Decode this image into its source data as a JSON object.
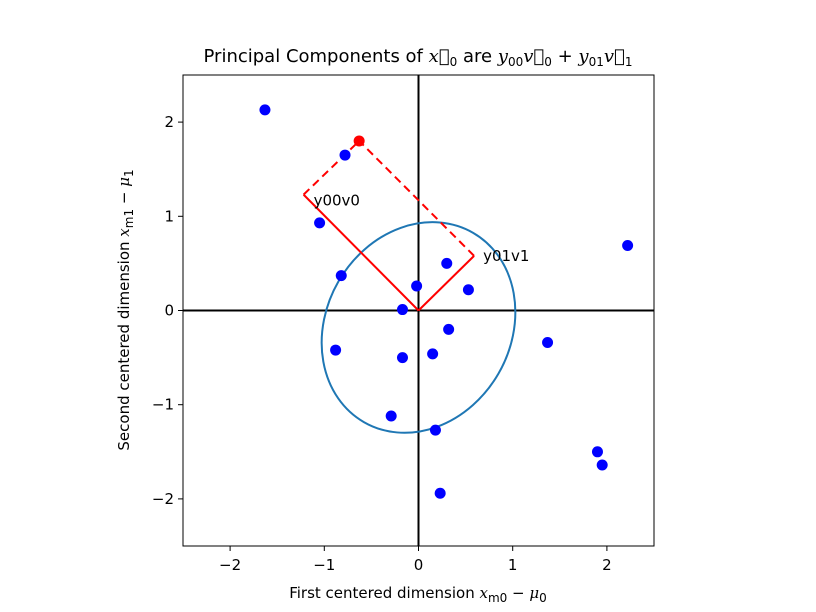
{
  "chart_data": {
    "type": "scatter",
    "title": {
      "prefix": "Principal Components of ",
      "middle": " are ",
      "plus": " + "
    },
    "xlabel": {
      "prefix": "First centered dimension ",
      "var": "x",
      "var_sub": "m0",
      "minus": " − ",
      "mu": "μ",
      "mu_sub": "0"
    },
    "ylabel": {
      "prefix": "Second centered dimension ",
      "var": "x",
      "var_sub": "m1",
      "minus": " − ",
      "mu": "μ",
      "mu_sub": "1"
    },
    "xlim": [
      -2.5,
      2.5
    ],
    "ylim": [
      -2.5,
      2.5
    ],
    "xticks": [
      -2,
      -1,
      0,
      1,
      2
    ],
    "yticks": [
      -2,
      -1,
      0,
      1,
      2
    ],
    "tick_labels": {
      "-2": "−2",
      "-1": "−1",
      "0": "0",
      "1": "1",
      "2": "2"
    },
    "grid": false,
    "points": [
      [
        -1.63,
        2.13
      ],
      [
        -0.78,
        1.65
      ],
      [
        -1.05,
        0.93
      ],
      [
        -0.82,
        0.37
      ],
      [
        -0.88,
        -0.42
      ],
      [
        -0.17,
        -0.5
      ],
      [
        -0.17,
        0.01
      ],
      [
        -0.02,
        0.26
      ],
      [
        0.3,
        0.5
      ],
      [
        0.53,
        0.22
      ],
      [
        0.32,
        -0.2
      ],
      [
        0.15,
        -0.46
      ],
      [
        -0.29,
        -1.12
      ],
      [
        0.18,
        -1.27
      ],
      [
        0.23,
        -1.94
      ],
      [
        1.37,
        -0.34
      ],
      [
        2.22,
        0.69
      ],
      [
        1.9,
        -1.5
      ],
      [
        1.95,
        -1.64
      ]
    ],
    "point_color": "#0000ff",
    "highlight_point": [
      -0.63,
      1.8
    ],
    "highlight_color": "#ff0000",
    "component_vectors": {
      "v0_end": [
        -1.22,
        1.23
      ],
      "v1_end": [
        0.59,
        0.58
      ],
      "label_v0": "y00v0",
      "label_v1": "y01v1",
      "color": "#ff0000"
    },
    "ellipse": {
      "center": [
        0.0,
        -0.18
      ],
      "semi_major": 1.16,
      "semi_minor": 0.98,
      "angle_deg": -60,
      "color": "#1f77b4"
    },
    "axes_lines_color": "#000000"
  }
}
